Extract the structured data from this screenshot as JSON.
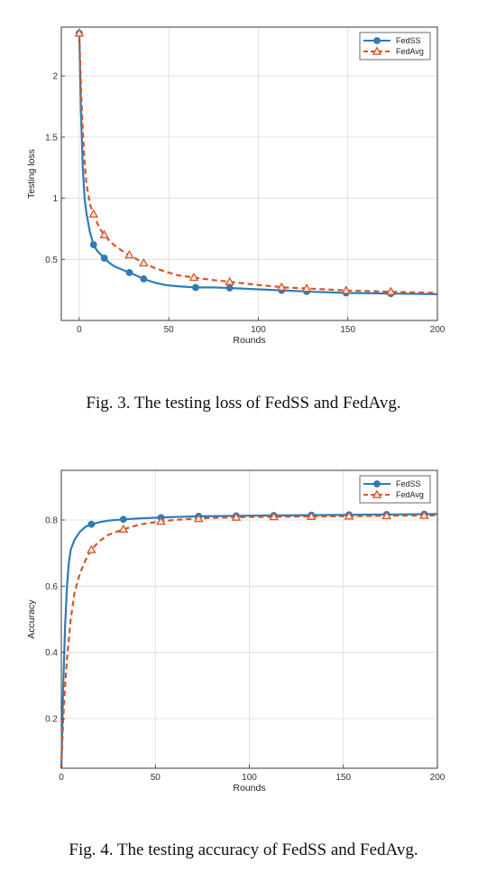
{
  "chart_data": [
    {
      "type": "line",
      "ylabel": "Testing loss",
      "xlabel": "Rounds",
      "xlim": [
        -10,
        200
      ],
      "ylim": [
        0,
        2.4
      ],
      "xticks": [
        0,
        50,
        100,
        150,
        200
      ],
      "yticks": [
        0.5,
        1,
        1.5,
        2
      ],
      "xtick_labels": [
        "0",
        "50",
        "100",
        "150",
        "200"
      ],
      "ytick_labels": [
        "0.5",
        "1",
        "1.5",
        "2"
      ],
      "grid": true,
      "legend_position": "top-right",
      "caption": "Fig. 3.  The testing loss of FedSS and FedAvg.",
      "series": [
        {
          "name": "FedSS",
          "color": "#2e7bb8",
          "marker": "circle",
          "dashed": false,
          "x": [
            0,
            1,
            2,
            3,
            4,
            6,
            8,
            10,
            12,
            14,
            17,
            20,
            25,
            30,
            36,
            42,
            48,
            55,
            65,
            75,
            85,
            100,
            115,
            130,
            150,
            175,
            200
          ],
          "y": [
            2.35,
            1.7,
            1.25,
            1.0,
            0.88,
            0.72,
            0.62,
            0.57,
            0.54,
            0.51,
            0.47,
            0.44,
            0.41,
            0.38,
            0.34,
            0.31,
            0.29,
            0.28,
            0.27,
            0.27,
            0.265,
            0.255,
            0.245,
            0.235,
            0.225,
            0.22,
            0.215
          ],
          "marker_x": [
            0,
            8,
            14,
            28,
            36,
            65,
            84,
            113,
            127,
            149,
            174
          ]
        },
        {
          "name": "FedAvg",
          "color": "#d2572a",
          "marker": "triangle",
          "dashed": true,
          "x": [
            0,
            1,
            2,
            3,
            4,
            6,
            8,
            10,
            12,
            14,
            17,
            20,
            25,
            30,
            36,
            42,
            48,
            55,
            65,
            75,
            85,
            100,
            115,
            130,
            150,
            175,
            200
          ],
          "y": [
            2.35,
            1.9,
            1.55,
            1.3,
            1.12,
            0.95,
            0.87,
            0.8,
            0.74,
            0.7,
            0.65,
            0.61,
            0.56,
            0.52,
            0.47,
            0.43,
            0.4,
            0.37,
            0.35,
            0.33,
            0.315,
            0.29,
            0.27,
            0.26,
            0.245,
            0.235,
            0.225
          ],
          "marker_x": [
            0,
            8,
            14,
            28,
            36,
            64,
            84,
            113,
            127,
            149,
            174
          ]
        }
      ]
    },
    {
      "type": "line",
      "ylabel": "Accuracy",
      "xlabel": "Rounds",
      "xlim": [
        0,
        200
      ],
      "ylim": [
        0.05,
        0.95
      ],
      "xticks": [
        0,
        50,
        100,
        150,
        200
      ],
      "yticks": [
        0.2,
        0.4,
        0.6,
        0.8
      ],
      "xtick_labels": [
        "0",
        "50",
        "100",
        "150",
        "200"
      ],
      "ytick_labels": [
        "0.2",
        "0.4",
        "0.6",
        "0.8"
      ],
      "grid": true,
      "legend_position": "top-right",
      "caption": "Fig. 4.  The testing accuracy of FedSS and FedAvg.",
      "series": [
        {
          "name": "FedSS",
          "color": "#2e7bb8",
          "marker": "circle",
          "dashed": false,
          "x": [
            0,
            1,
            2,
            3,
            4,
            5,
            7,
            10,
            13,
            16,
            20,
            25,
            33,
            42,
            52,
            60,
            72,
            85,
            100,
            120,
            140,
            160,
            180,
            200
          ],
          "y": [
            0.05,
            0.3,
            0.48,
            0.6,
            0.67,
            0.71,
            0.74,
            0.765,
            0.78,
            0.787,
            0.793,
            0.798,
            0.802,
            0.805,
            0.807,
            0.809,
            0.811,
            0.812,
            0.813,
            0.814,
            0.815,
            0.816,
            0.817,
            0.818
          ],
          "marker_x": [
            16,
            33,
            53,
            73,
            93,
            113,
            133,
            153,
            173,
            193
          ]
        },
        {
          "name": "FedAvg",
          "color": "#d2572a",
          "marker": "triangle",
          "dashed": true,
          "x": [
            0,
            1,
            2,
            3,
            5,
            7,
            10,
            13,
            16,
            20,
            25,
            33,
            42,
            52,
            60,
            72,
            85,
            100,
            120,
            140,
            160,
            180,
            200
          ],
          "y": [
            0.05,
            0.2,
            0.3,
            0.38,
            0.5,
            0.58,
            0.64,
            0.68,
            0.71,
            0.735,
            0.755,
            0.772,
            0.787,
            0.795,
            0.8,
            0.804,
            0.807,
            0.809,
            0.81,
            0.811,
            0.812,
            0.813,
            0.814
          ],
          "marker_x": [
            16,
            33,
            53,
            73,
            93,
            113,
            133,
            153,
            173,
            193
          ]
        }
      ]
    }
  ]
}
